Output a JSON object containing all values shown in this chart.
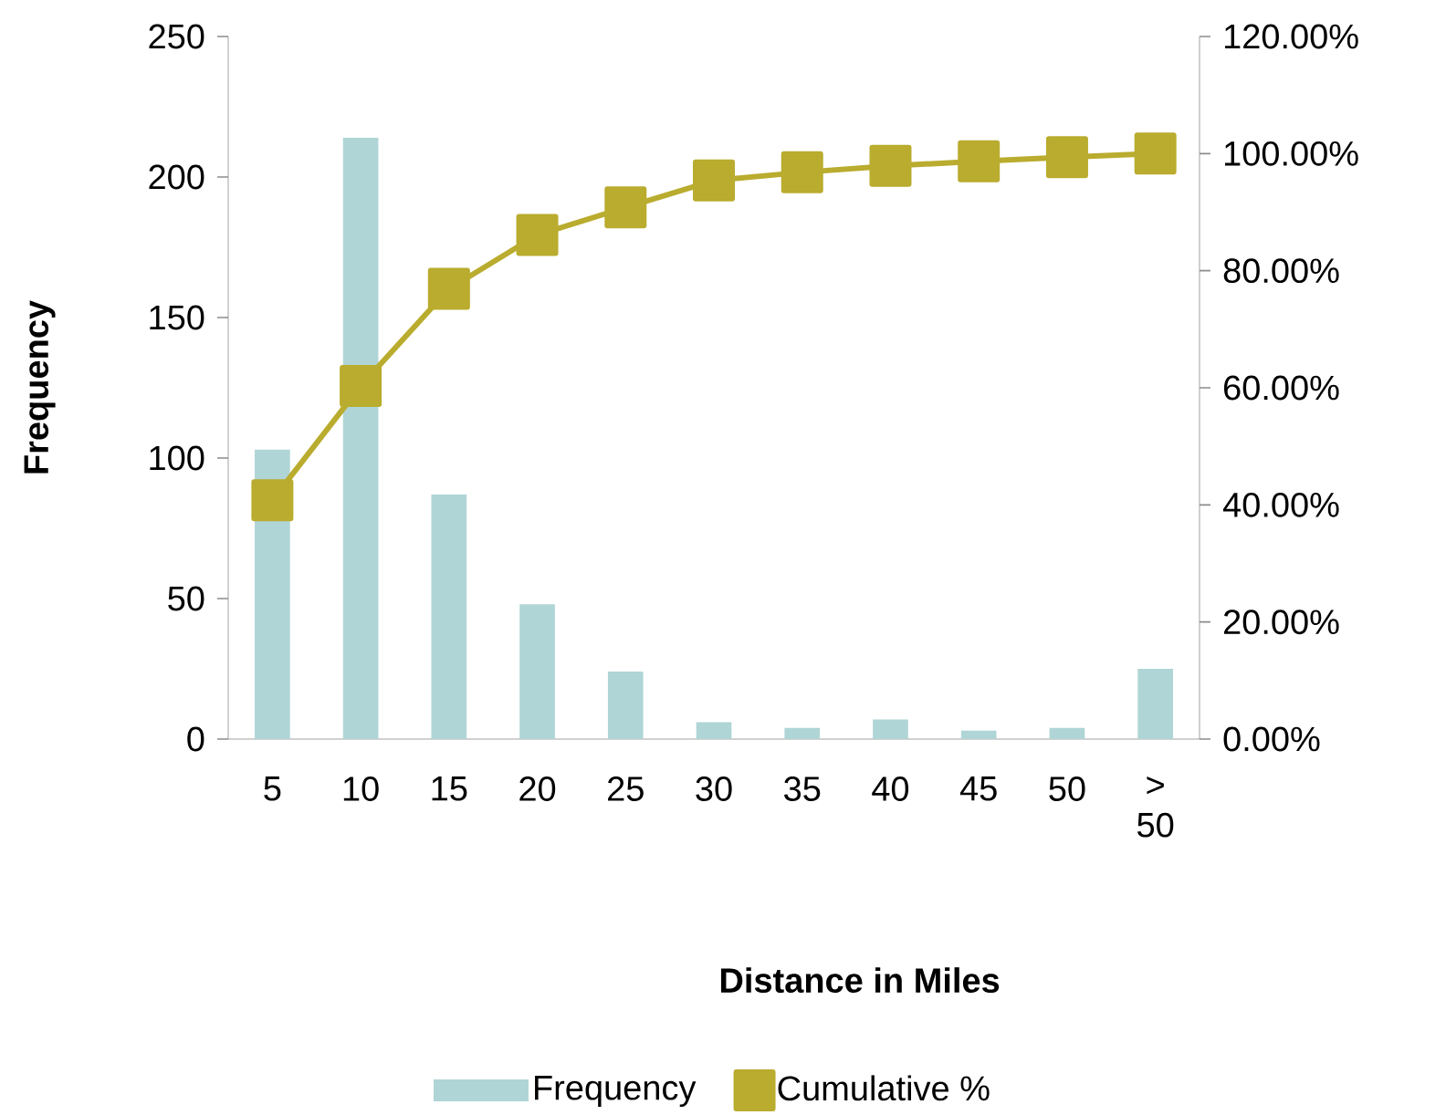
{
  "chart_data": {
    "type": "bar",
    "xlabel": "Distance in Miles",
    "ylabel": "Frequency",
    "categories": [
      "5",
      "10",
      "15",
      "20",
      "25",
      "30",
      "35",
      "40",
      "45",
      "50",
      "> 50"
    ],
    "series": [
      {
        "name": "Frequency",
        "color": "#b0d5d6",
        "values": [
          103,
          214,
          87,
          48,
          24,
          6,
          4,
          7,
          3,
          4,
          25
        ]
      },
      {
        "name": "Cumulative %",
        "type": "line",
        "axis": "y2",
        "color": "#b9ac2e",
        "marker": "square",
        "values": [
          40.8,
          60.3,
          76.9,
          86.1,
          90.8,
          95.4,
          96.8,
          97.9,
          98.7,
          99.4,
          100
        ]
      }
    ],
    "ylim": [
      0,
      250
    ],
    "yticks": [
      0,
      50,
      100,
      150,
      200,
      250
    ],
    "y2lim": [
      0,
      120
    ],
    "y2ticks": [
      {
        "value": 0,
        "label": "0.00%"
      },
      {
        "value": 20,
        "label": "20.00%"
      },
      {
        "value": 40,
        "label": "40.00%"
      },
      {
        "value": 60,
        "label": "60.00%"
      },
      {
        "value": 80,
        "label": "80.00%"
      },
      {
        "value": 100,
        "label": "100.00%"
      },
      {
        "value": 120,
        "label": "120.00%"
      }
    ],
    "legend": "bottom",
    "grid": false
  }
}
